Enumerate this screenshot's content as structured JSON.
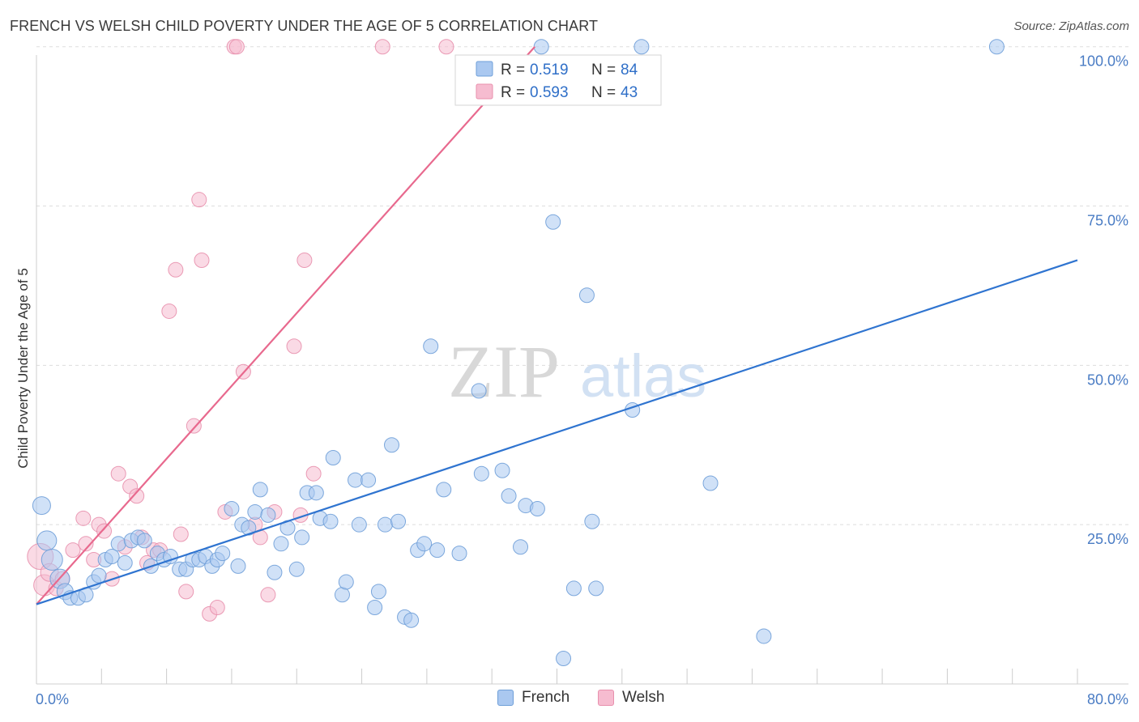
{
  "header": {
    "title": "FRENCH VS WELSH CHILD POVERTY UNDER THE AGE OF 5 CORRELATION CHART",
    "source": "Source: ZipAtlas.com"
  },
  "watermark": {
    "zip": "ZIP",
    "atlas": "atlas"
  },
  "legend_top": {
    "french": {
      "r_label": "R =",
      "r_value": "0.519",
      "n_label": "N =",
      "n_value": "84"
    },
    "welsh": {
      "r_label": "R =",
      "r_value": "0.593",
      "n_label": "N =",
      "n_value": "43"
    }
  },
  "legend_bottom": {
    "french": "French",
    "welsh": "Welsh"
  },
  "colors": {
    "french_fill": "#aac8f0",
    "french_stroke": "#6f9fd8",
    "french_line": "#2f74d0",
    "welsh_fill": "#f6bcd0",
    "welsh_stroke": "#e890ad",
    "welsh_line": "#e8698e",
    "axis_label": "#4a7cc4",
    "grid": "#dddddd"
  },
  "chart_data": {
    "type": "scatter",
    "title": "FRENCH VS WELSH CHILD POVERTY UNDER THE AGE OF 5 CORRELATION CHART",
    "xlabel": "",
    "ylabel": "Child Poverty Under the Age of 5",
    "xlim": [
      0,
      80
    ],
    "ylim": [
      0,
      102
    ],
    "x_tick_labels": [
      "0.0%",
      "80.0%"
    ],
    "y_ticks": [
      25,
      50,
      75,
      100
    ],
    "y_tick_labels": [
      "25.0%",
      "50.0%",
      "75.0%",
      "100.0%"
    ],
    "series": [
      {
        "name": "French",
        "R": 0.519,
        "N": 84,
        "trend": {
          "x": [
            0,
            80
          ],
          "y": [
            12.5,
            66.5
          ]
        },
        "points": [
          [
            0.4,
            28.0,
            11
          ],
          [
            0.8,
            22.5,
            12
          ],
          [
            1.2,
            19.5,
            13
          ],
          [
            1.8,
            16.5,
            12
          ],
          [
            2.2,
            14.5,
            10
          ],
          [
            2.6,
            13.5,
            9
          ],
          [
            3.2,
            13.5,
            9
          ],
          [
            3.8,
            14.0,
            9
          ],
          [
            4.4,
            16.0,
            9
          ],
          [
            4.8,
            17.0,
            9
          ],
          [
            5.3,
            19.5,
            9
          ],
          [
            5.8,
            20.0,
            9
          ],
          [
            6.3,
            22.0,
            9
          ],
          [
            6.8,
            19.0,
            9
          ],
          [
            7.3,
            22.5,
            9
          ],
          [
            7.8,
            23.0,
            9
          ],
          [
            8.3,
            22.5,
            9
          ],
          [
            8.8,
            18.5,
            9
          ],
          [
            9.3,
            20.5,
            9
          ],
          [
            9.8,
            19.5,
            9
          ],
          [
            10.3,
            20.0,
            9
          ],
          [
            11.0,
            18.0,
            9
          ],
          [
            11.5,
            18.0,
            9
          ],
          [
            12.0,
            19.5,
            9
          ],
          [
            12.5,
            19.5,
            9
          ],
          [
            13.0,
            20.0,
            9
          ],
          [
            13.5,
            18.5,
            9
          ],
          [
            13.9,
            19.5,
            9
          ],
          [
            14.3,
            20.5,
            9
          ],
          [
            15.0,
            27.5,
            9
          ],
          [
            15.5,
            18.5,
            9
          ],
          [
            15.8,
            25.0,
            9
          ],
          [
            16.3,
            24.5,
            9
          ],
          [
            16.8,
            27.0,
            9
          ],
          [
            17.2,
            30.5,
            9
          ],
          [
            17.8,
            26.5,
            9
          ],
          [
            18.3,
            17.5,
            9
          ],
          [
            18.8,
            22.0,
            9
          ],
          [
            19.3,
            24.5,
            9
          ],
          [
            20.0,
            18.0,
            9
          ],
          [
            20.4,
            23.0,
            9
          ],
          [
            20.8,
            30.0,
            9
          ],
          [
            21.5,
            30.0,
            9
          ],
          [
            21.8,
            26.0,
            9
          ],
          [
            22.6,
            25.5,
            9
          ],
          [
            22.8,
            35.5,
            9
          ],
          [
            23.5,
            14.0,
            9
          ],
          [
            23.8,
            16.0,
            9
          ],
          [
            24.5,
            32.0,
            9
          ],
          [
            24.8,
            25.0,
            9
          ],
          [
            25.5,
            32.0,
            9
          ],
          [
            26.0,
            12.0,
            9
          ],
          [
            26.3,
            14.5,
            9
          ],
          [
            26.8,
            25.0,
            9
          ],
          [
            27.3,
            37.5,
            9
          ],
          [
            27.8,
            25.5,
            9
          ],
          [
            28.3,
            10.5,
            9
          ],
          [
            28.8,
            10.0,
            9
          ],
          [
            29.3,
            21.0,
            9
          ],
          [
            29.8,
            22.0,
            9
          ],
          [
            30.3,
            53.0,
            9
          ],
          [
            30.8,
            21.0,
            9
          ],
          [
            31.3,
            30.5,
            9
          ],
          [
            32.5,
            20.5,
            9
          ],
          [
            34.0,
            46.0,
            9
          ],
          [
            34.2,
            33.0,
            9
          ],
          [
            35.8,
            33.5,
            9
          ],
          [
            36.3,
            29.5,
            9
          ],
          [
            37.2,
            21.5,
            9
          ],
          [
            37.6,
            28.0,
            9
          ],
          [
            38.5,
            27.5,
            9
          ],
          [
            38.8,
            100.0,
            9
          ],
          [
            39.7,
            72.5,
            9
          ],
          [
            40.5,
            4.0,
            9
          ],
          [
            41.3,
            15.0,
            9
          ],
          [
            42.3,
            61.0,
            9
          ],
          [
            42.7,
            25.5,
            9
          ],
          [
            43.0,
            15.0,
            9
          ],
          [
            45.8,
            43.0,
            9
          ],
          [
            46.5,
            100.0,
            9
          ],
          [
            51.8,
            31.5,
            9
          ],
          [
            55.9,
            7.5,
            9
          ],
          [
            73.8,
            100.0,
            9
          ]
        ]
      },
      {
        "name": "Welsh",
        "R": 0.593,
        "N": 43,
        "trend": {
          "x": [
            0,
            38.3
          ],
          "y": [
            12.5,
            100
          ]
        },
        "points": [
          [
            0.3,
            20.0,
            16
          ],
          [
            0.6,
            15.5,
            13
          ],
          [
            1.0,
            17.5,
            11
          ],
          [
            1.5,
            15.0,
            9
          ],
          [
            2.0,
            16.5,
            9
          ],
          [
            2.8,
            21.0,
            9
          ],
          [
            3.6,
            26.0,
            9
          ],
          [
            3.8,
            22.0,
            9
          ],
          [
            4.4,
            19.5,
            9
          ],
          [
            4.8,
            25.0,
            9
          ],
          [
            5.2,
            24.0,
            9
          ],
          [
            5.8,
            16.5,
            9
          ],
          [
            6.3,
            33.0,
            9
          ],
          [
            6.8,
            21.5,
            9
          ],
          [
            7.2,
            31.0,
            9
          ],
          [
            7.7,
            29.5,
            9
          ],
          [
            8.1,
            23.0,
            9
          ],
          [
            8.5,
            19.0,
            9
          ],
          [
            9.0,
            21.0,
            9
          ],
          [
            9.5,
            21.0,
            9
          ],
          [
            10.2,
            58.5,
            9
          ],
          [
            10.7,
            65.0,
            9
          ],
          [
            11.1,
            23.5,
            9
          ],
          [
            11.5,
            14.5,
            9
          ],
          [
            12.1,
            40.5,
            9
          ],
          [
            12.5,
            76.0,
            9
          ],
          [
            12.7,
            66.5,
            9
          ],
          [
            13.3,
            11.0,
            9
          ],
          [
            13.9,
            12.0,
            9
          ],
          [
            14.5,
            27.0,
            9
          ],
          [
            15.2,
            100.0,
            9
          ],
          [
            15.4,
            100.0,
            9
          ],
          [
            15.9,
            49.0,
            9
          ],
          [
            16.8,
            25.0,
            9
          ],
          [
            17.2,
            23.0,
            9
          ],
          [
            17.8,
            14.0,
            9
          ],
          [
            18.3,
            27.0,
            9
          ],
          [
            19.8,
            53.0,
            9
          ],
          [
            20.3,
            26.5,
            9
          ],
          [
            20.6,
            66.5,
            9
          ],
          [
            21.3,
            33.0,
            9
          ],
          [
            26.6,
            100.0,
            9
          ],
          [
            31.5,
            100.0,
            9
          ]
        ]
      }
    ]
  }
}
